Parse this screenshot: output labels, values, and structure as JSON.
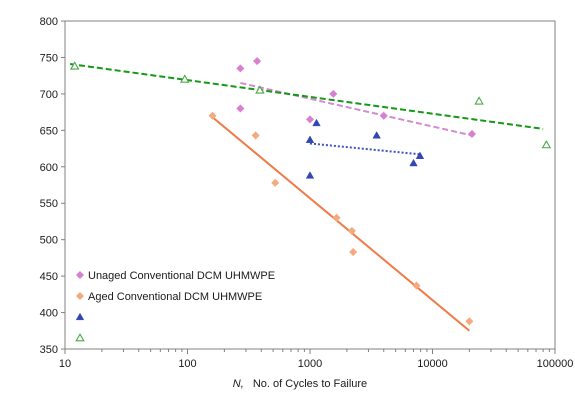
{
  "chart_data": {
    "type": "scatter",
    "x_scale": "log",
    "xlim": [
      10,
      100000
    ],
    "ylim": [
      350,
      800
    ],
    "x_ticks": [
      "10",
      "100",
      "1000",
      "10000",
      "100000"
    ],
    "y_ticks": [
      "350",
      "400",
      "450",
      "500",
      "550",
      "600",
      "650",
      "700",
      "750",
      "800"
    ],
    "xlabel_italic": "N,",
    "xlabel_rest": "No. of Cycles to Failure",
    "ylabel": "",
    "grid": false,
    "legend_placement": "lower-left",
    "series": [
      {
        "name": "Unaged Conventional DCM UHMWPE",
        "marker": "diamond",
        "color": "#d97fd2",
        "points": [
          [
            270,
            735
          ],
          [
            370,
            745
          ],
          [
            270,
            680
          ],
          [
            1000,
            665
          ],
          [
            1550,
            700
          ],
          [
            4000,
            670
          ],
          [
            21000,
            645
          ]
        ],
        "trend": {
          "x": [
            270,
            21000
          ],
          "y": [
            715,
            643
          ],
          "dash": "6,3",
          "color": "#d48ad0"
        }
      },
      {
        "name": "Aged Conventional DCM UHMWPE",
        "marker": "diamond",
        "color": "#f5a97e",
        "points": [
          [
            160,
            670
          ],
          [
            360,
            643
          ],
          [
            520,
            578
          ],
          [
            1650,
            530
          ],
          [
            2200,
            512
          ],
          [
            2250,
            483
          ],
          [
            7400,
            437
          ],
          [
            20000,
            388
          ]
        ],
        "trend": {
          "x": [
            160,
            20000
          ],
          "y": [
            668,
            375
          ],
          "dash": "",
          "color": "#f07a45"
        }
      },
      {
        "name": "",
        "marker": "triangle",
        "color": "#3247b5",
        "points": [
          [
            1000,
            637
          ],
          [
            1130,
            660
          ],
          [
            3500,
            643
          ],
          [
            1000,
            588
          ],
          [
            7000,
            605
          ],
          [
            7900,
            615
          ]
        ],
        "trend": {
          "x": [
            1000,
            8000
          ],
          "y": [
            632,
            617
          ],
          "dash": "2,2",
          "color": "#3f52bd"
        }
      },
      {
        "name": "",
        "marker": "triangle-open",
        "color": "#4aa84a",
        "points": [
          [
            12,
            738
          ],
          [
            95,
            720
          ],
          [
            390,
            705
          ],
          [
            24000,
            690
          ],
          [
            85000,
            630
          ]
        ],
        "trend": {
          "x": [
            11,
            80000
          ],
          "y": [
            741,
            652
          ],
          "dash": "6,3",
          "color": "#159815"
        }
      }
    ],
    "legend": [
      {
        "label": "Unaged Conventional DCM UHMWPE",
        "marker": "diamond",
        "color": "#d97fd2"
      },
      {
        "label": "Aged Conventional DCM UHMWPE",
        "marker": "diamond",
        "color": "#f5a97e"
      },
      {
        "label": "",
        "marker": "triangle",
        "color": "#3247b5"
      },
      {
        "label": "",
        "marker": "triangle-open",
        "color": "#4aa84a"
      }
    ]
  }
}
